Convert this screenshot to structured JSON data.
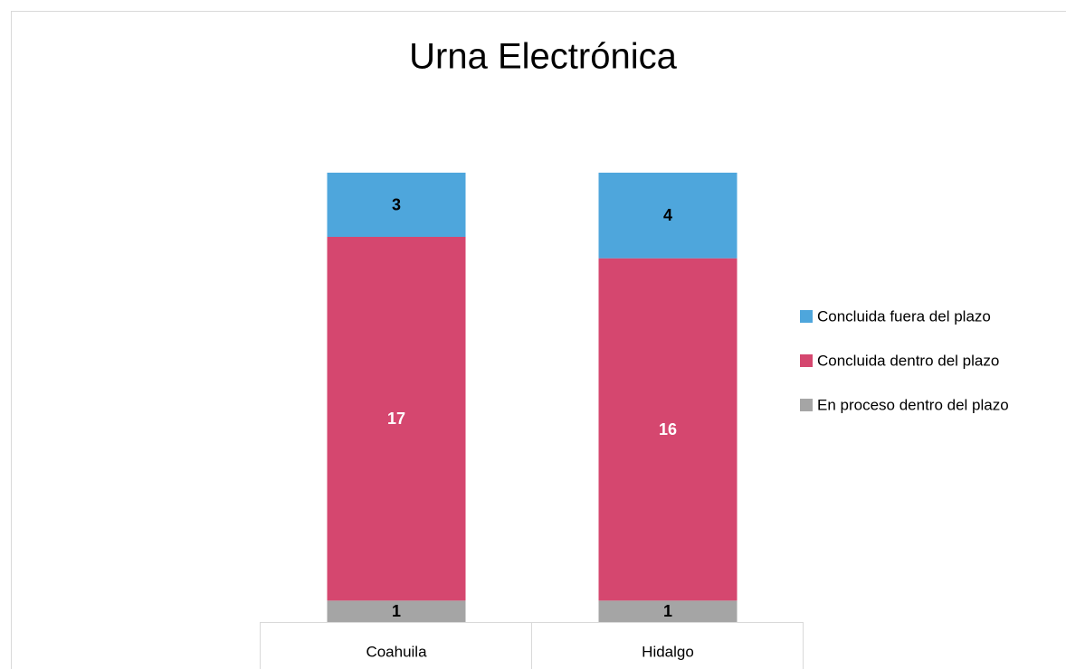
{
  "chart_data": {
    "type": "stacked_bar",
    "title": "Urna Electrónica",
    "categories": [
      "Coahuila",
      "Hidalgo"
    ],
    "series": [
      {
        "name": "Concluida fuera del plazo",
        "color": "#4ea6dc",
        "label_color": "#000000",
        "values": [
          3,
          4
        ]
      },
      {
        "name": "Concluida dentro del plazo",
        "color": "#d5476f",
        "label_color": "#ffffff",
        "values": [
          17,
          16
        ]
      },
      {
        "name": "En proceso dentro del plazo",
        "color": "#a5a5a5",
        "label_color": "#000000",
        "values": [
          1,
          1
        ]
      }
    ],
    "legend": "right"
  }
}
